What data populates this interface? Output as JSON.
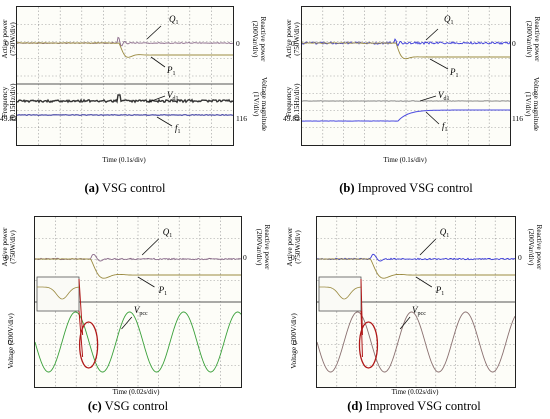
{
  "panels": [
    {
      "id": "a",
      "caption_letter": "(a)",
      "caption_text": "VSG control",
      "left_top_label": "Active power\n(750W/div)",
      "right_top_label": "Reactive power\n(200Var/div)",
      "left_bottom_label": "Frequency\n(0.15Hz/div)",
      "right_bottom_label": "Voltage magnitude\n(1V/div)",
      "zero_left": "0",
      "zero_right": "0",
      "bottom_left_value": "49.82",
      "bottom_right_value": "116",
      "time_label": "Time (0.1s/div)",
      "signals": {
        "q": "Q",
        "q_sub": "1",
        "p": "P",
        "p_sub": "1",
        "v": "V",
        "v_sub": "d1",
        "f": "f",
        "f_sub": "1"
      }
    },
    {
      "id": "b",
      "caption_letter": "(b)",
      "caption_text": "Improved VSG control",
      "left_top_label": "Active power\n(750W/div)",
      "right_top_label": "Reactive power\n(200Var/div)",
      "left_bottom_label": "Frequency\n(0.15Hz/div)",
      "right_bottom_label": "Voltage magnitude\n(1V/div)",
      "zero_left": "0",
      "zero_right": "0",
      "bottom_left_value": "49.82",
      "bottom_right_value": "116",
      "time_label": "Time (0.1s/div)",
      "signals": {
        "q": "Q",
        "q_sub": "1",
        "p": "P",
        "p_sub": "1",
        "v": "V",
        "v_sub": "d1",
        "f": "f",
        "f_sub": "1"
      }
    },
    {
      "id": "c",
      "caption_letter": "(c)",
      "caption_text": "VSG control",
      "left_top_label": "Active power\n(750W/div)",
      "right_top_label": "Reactive power\n(200Var/div)",
      "left_bottom_label": "Voltage (200V/div)",
      "zero_left": "0",
      "zero_right": "0",
      "zero_left_bottom": "0",
      "time_label": "Time (0.02s/div)",
      "signals": {
        "q": "Q",
        "q_sub": "1",
        "p": "P",
        "p_sub": "1",
        "v": "V",
        "v_sub": "pcc"
      }
    },
    {
      "id": "d",
      "caption_letter": "(d)",
      "caption_text": "Improved VSG control",
      "left_top_label": "Active power\n(750W/div)",
      "right_top_label": "Reactive power\n(200Var/div)",
      "left_bottom_label": "Voltage (200V/div)",
      "zero_left": "0",
      "zero_right": "0",
      "zero_left_bottom": "0",
      "time_label": "Time (0.02s/div)",
      "signals": {
        "q": "Q",
        "q_sub": "1",
        "p": "P",
        "p_sub": "1",
        "v": "V",
        "v_sub": "pcc"
      }
    }
  ],
  "colors": {
    "q_trace_a": "#8a6a8a",
    "q_trace_b": "#3a3ad8",
    "p_trace": "#9a8a40",
    "v_trace_a": "#333333",
    "f_trace_a": "#2c2c9a",
    "f_trace_b": "#4a4ae0",
    "vpcc_c": "#3aa03a",
    "vpcc_d": "#8a7070",
    "highlight": "#b01818"
  }
}
